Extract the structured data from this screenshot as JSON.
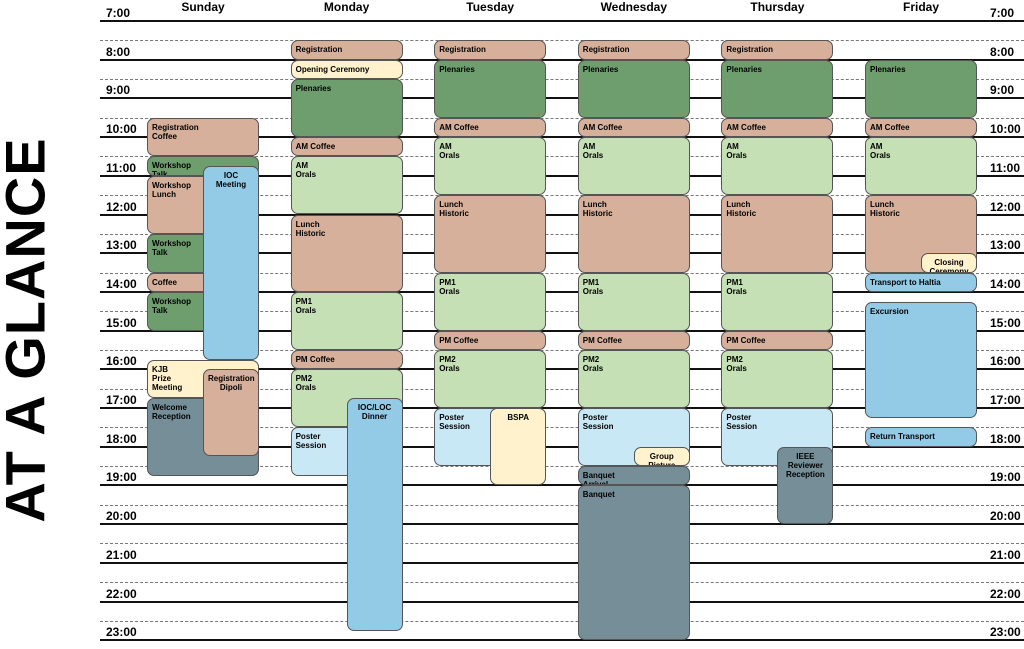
{
  "title": "AT A GLANCE",
  "days": [
    "Sunday",
    "Monday",
    "Tuesday",
    "Wednesday",
    "Thursday",
    "Friday"
  ],
  "times": [
    "7:00",
    "8:00",
    "9:00",
    "10:00",
    "11:00",
    "12:00",
    "13:00",
    "14:00",
    "15:00",
    "16:00",
    "17:00",
    "18:00",
    "19:00",
    "20:00",
    "21:00",
    "22:00",
    "23:00"
  ],
  "events": [
    {
      "day": 0,
      "start": 9.5,
      "end": 10.5,
      "label": "Registration\nCoffee",
      "color": "beige",
      "w": 1
    },
    {
      "day": 0,
      "start": 10.5,
      "end": 11.0,
      "label": "Workshop\nTalk",
      "color": "green",
      "w": 1
    },
    {
      "day": 0,
      "start": 11.0,
      "end": 12.5,
      "label": "Workshop\nLunch",
      "color": "beige",
      "w": 1
    },
    {
      "day": 0,
      "start": 12.5,
      "end": 13.5,
      "label": "Workshop\nTalk",
      "color": "green",
      "w": 1
    },
    {
      "day": 0,
      "start": 13.5,
      "end": 14.0,
      "label": "Coffee",
      "color": "beige",
      "w": 1
    },
    {
      "day": 0,
      "start": 14.0,
      "end": 15.0,
      "label": "Workshop\nTalk",
      "color": "green",
      "w": 1
    },
    {
      "day": 0,
      "start": 15.75,
      "end": 16.75,
      "label": "KJB\nPrize\nMeeting",
      "color": "cream",
      "w": 1
    },
    {
      "day": 0,
      "start": 16.75,
      "end": 18.75,
      "label": "Welcome\nReception",
      "color": "slate",
      "w": 1
    },
    {
      "day": 0,
      "start": 10.75,
      "end": 15.75,
      "label": "IOC\nMeeting",
      "color": "blue",
      "w": 0.5,
      "col": 1,
      "center": true
    },
    {
      "day": 0,
      "start": 16.0,
      "end": 18.25,
      "label": "Registration\nDipoli",
      "color": "beige",
      "w": 0.5,
      "col": 1,
      "center": true
    },
    {
      "day": 1,
      "start": 7.5,
      "end": 8.0,
      "label": "Registration",
      "color": "beige",
      "w": 1
    },
    {
      "day": 1,
      "start": 8.0,
      "end": 8.5,
      "label": "Opening Ceremony",
      "color": "cream",
      "w": 1
    },
    {
      "day": 1,
      "start": 8.5,
      "end": 10.0,
      "label": "Plenaries",
      "color": "green",
      "w": 1
    },
    {
      "day": 1,
      "start": 10.0,
      "end": 10.5,
      "label": "AM Coffee",
      "color": "beige",
      "w": 1
    },
    {
      "day": 1,
      "start": 10.5,
      "end": 12.0,
      "label": "AM\nOrals",
      "color": "lgreen",
      "w": 1
    },
    {
      "day": 1,
      "start": 12.0,
      "end": 14.0,
      "label": "Lunch\nHistoric",
      "color": "beige",
      "w": 1
    },
    {
      "day": 1,
      "start": 14.0,
      "end": 15.5,
      "label": "PM1\nOrals",
      "color": "lgreen",
      "w": 1
    },
    {
      "day": 1,
      "start": 15.5,
      "end": 16.0,
      "label": "PM Coffee",
      "color": "beige",
      "w": 1
    },
    {
      "day": 1,
      "start": 16.0,
      "end": 17.5,
      "label": "PM2\nOrals",
      "color": "lgreen",
      "w": 1
    },
    {
      "day": 1,
      "start": 17.5,
      "end": 18.75,
      "label": "Poster\nSession",
      "color": "lblue",
      "w": 1
    },
    {
      "day": 1,
      "start": 16.75,
      "end": 22.75,
      "label": "IOC/LOC\nDinner",
      "color": "blue",
      "w": 0.5,
      "col": 1,
      "center": true
    },
    {
      "day": 2,
      "start": 7.5,
      "end": 8.0,
      "label": "Registration",
      "color": "beige",
      "w": 1
    },
    {
      "day": 2,
      "start": 8.0,
      "end": 9.5,
      "label": "Plenaries",
      "color": "green",
      "w": 1
    },
    {
      "day": 2,
      "start": 9.5,
      "end": 10.0,
      "label": "AM Coffee",
      "color": "beige",
      "w": 1
    },
    {
      "day": 2,
      "start": 10.0,
      "end": 11.5,
      "label": "AM\nOrals",
      "color": "lgreen",
      "w": 1
    },
    {
      "day": 2,
      "start": 11.5,
      "end": 13.5,
      "label": "Lunch\nHistoric",
      "color": "beige",
      "w": 1
    },
    {
      "day": 2,
      "start": 13.5,
      "end": 15.0,
      "label": "PM1\nOrals",
      "color": "lgreen",
      "w": 1
    },
    {
      "day": 2,
      "start": 15.0,
      "end": 15.5,
      "label": "PM Coffee",
      "color": "beige",
      "w": 1
    },
    {
      "day": 2,
      "start": 15.5,
      "end": 17.0,
      "label": "PM2\nOrals",
      "color": "lgreen",
      "w": 1
    },
    {
      "day": 2,
      "start": 17.0,
      "end": 18.5,
      "label": "Poster\nSession",
      "color": "lblue",
      "w": 1
    },
    {
      "day": 2,
      "start": 17.0,
      "end": 19.0,
      "label": "BSPA",
      "color": "cream",
      "w": 0.5,
      "col": 1,
      "center": true
    },
    {
      "day": 3,
      "start": 7.5,
      "end": 8.0,
      "label": "Registration",
      "color": "beige",
      "w": 1
    },
    {
      "day": 3,
      "start": 8.0,
      "end": 9.5,
      "label": "Plenaries",
      "color": "green",
      "w": 1
    },
    {
      "day": 3,
      "start": 9.5,
      "end": 10.0,
      "label": "AM Coffee",
      "color": "beige",
      "w": 1
    },
    {
      "day": 3,
      "start": 10.0,
      "end": 11.5,
      "label": "AM\nOrals",
      "color": "lgreen",
      "w": 1
    },
    {
      "day": 3,
      "start": 11.5,
      "end": 13.5,
      "label": "Lunch\nHistoric",
      "color": "beige",
      "w": 1
    },
    {
      "day": 3,
      "start": 13.5,
      "end": 15.0,
      "label": "PM1\nOrals",
      "color": "lgreen",
      "w": 1
    },
    {
      "day": 3,
      "start": 15.0,
      "end": 15.5,
      "label": "PM Coffee",
      "color": "beige",
      "w": 1
    },
    {
      "day": 3,
      "start": 15.5,
      "end": 17.0,
      "label": "PM2\nOrals",
      "color": "lgreen",
      "w": 1
    },
    {
      "day": 3,
      "start": 17.0,
      "end": 18.5,
      "label": "Poster\nSession",
      "color": "lblue",
      "w": 1
    },
    {
      "day": 3,
      "start": 18.0,
      "end": 18.5,
      "label": "Group\nPicture",
      "color": "cream",
      "w": 0.5,
      "col": 1,
      "center": true
    },
    {
      "day": 3,
      "start": 18.5,
      "end": 19.0,
      "label": "Banquet\nArrival",
      "color": "slate",
      "w": 1
    },
    {
      "day": 3,
      "start": 19.0,
      "end": 23.0,
      "label": "Banquet",
      "color": "slate",
      "w": 1
    },
    {
      "day": 4,
      "start": 7.5,
      "end": 8.0,
      "label": "Registration",
      "color": "beige",
      "w": 1
    },
    {
      "day": 4,
      "start": 8.0,
      "end": 9.5,
      "label": "Plenaries",
      "color": "green",
      "w": 1
    },
    {
      "day": 4,
      "start": 9.5,
      "end": 10.0,
      "label": "AM Coffee",
      "color": "beige",
      "w": 1
    },
    {
      "day": 4,
      "start": 10.0,
      "end": 11.5,
      "label": "AM\nOrals",
      "color": "lgreen",
      "w": 1
    },
    {
      "day": 4,
      "start": 11.5,
      "end": 13.5,
      "label": "Lunch\nHistoric",
      "color": "beige",
      "w": 1
    },
    {
      "day": 4,
      "start": 13.5,
      "end": 15.0,
      "label": "PM1\nOrals",
      "color": "lgreen",
      "w": 1
    },
    {
      "day": 4,
      "start": 15.0,
      "end": 15.5,
      "label": "PM Coffee",
      "color": "beige",
      "w": 1
    },
    {
      "day": 4,
      "start": 15.5,
      "end": 17.0,
      "label": "PM2\nOrals",
      "color": "lgreen",
      "w": 1
    },
    {
      "day": 4,
      "start": 17.0,
      "end": 18.5,
      "label": "Poster\nSession",
      "color": "lblue",
      "w": 1
    },
    {
      "day": 4,
      "start": 18.0,
      "end": 20.0,
      "label": "IEEE\nReviewer\nReception",
      "color": "slate",
      "w": 0.5,
      "col": 1,
      "center": true
    },
    {
      "day": 5,
      "start": 8.0,
      "end": 9.5,
      "label": "Plenaries",
      "color": "green",
      "w": 1
    },
    {
      "day": 5,
      "start": 9.5,
      "end": 10.0,
      "label": "AM Coffee",
      "color": "beige",
      "w": 1
    },
    {
      "day": 5,
      "start": 10.0,
      "end": 11.5,
      "label": "AM\nOrals",
      "color": "lgreen",
      "w": 1
    },
    {
      "day": 5,
      "start": 11.5,
      "end": 13.5,
      "label": "Lunch\nHistoric",
      "color": "beige",
      "w": 1
    },
    {
      "day": 5,
      "start": 13.0,
      "end": 13.5,
      "label": "Closing\nCeremony",
      "color": "cream",
      "w": 0.5,
      "col": 1,
      "center": true
    },
    {
      "day": 5,
      "start": 13.5,
      "end": 14.0,
      "label": "Transport to Haltia",
      "color": "blue",
      "w": 1
    },
    {
      "day": 5,
      "start": 14.25,
      "end": 17.25,
      "label": "Excursion",
      "color": "blue",
      "w": 1
    },
    {
      "day": 5,
      "start": 17.5,
      "end": 18.0,
      "label": "Return Transport",
      "color": "blue",
      "w": 1
    }
  ],
  "colors": {
    "beige": "#d6b09b",
    "green": "#6e9e6e",
    "lgreen": "#c5e0b4",
    "cream": "#fff2cc",
    "blue": "#93cbe7",
    "lblue": "#c9e8f5",
    "slate": "#758e98"
  }
}
